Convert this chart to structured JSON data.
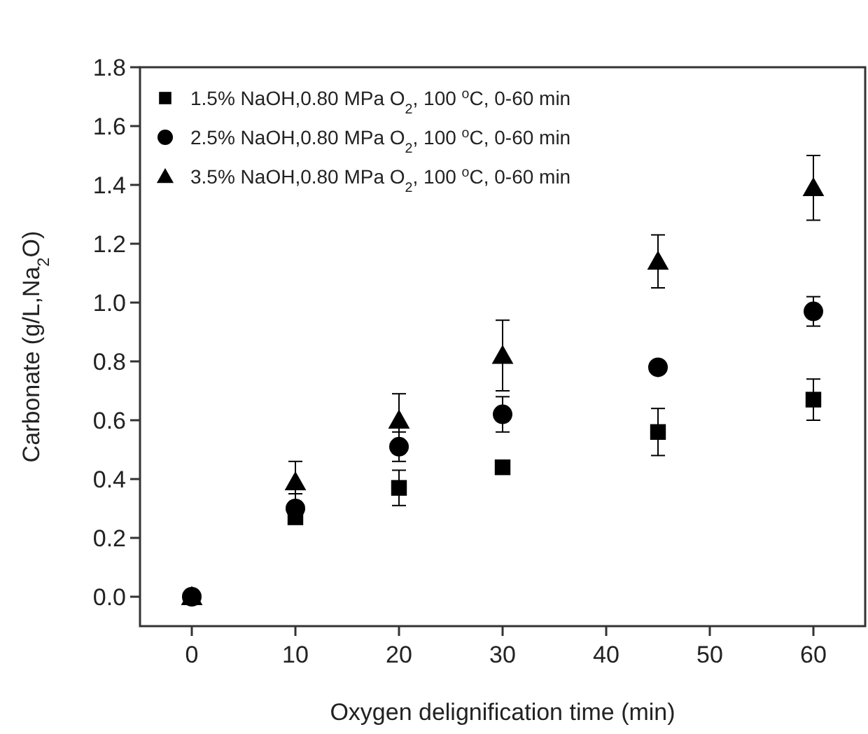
{
  "chart_data": {
    "type": "scatter",
    "xlabel": "Oxygen delignification time (min)",
    "ylabel": "Carbonate (g/L,Na$_{2}$O)",
    "x": [
      0,
      10,
      20,
      30,
      45,
      60
    ],
    "xlim": [
      -5,
      65
    ],
    "xticks": [
      0,
      10,
      20,
      30,
      40,
      50,
      60
    ],
    "ylim": [
      -0.1,
      1.8
    ],
    "yticks": [
      {
        "value": 0,
        "label": "0.0"
      },
      {
        "value": 0.2,
        "label": "0.2"
      },
      {
        "value": 0.4,
        "label": "0.4"
      },
      {
        "value": 0.6,
        "label": "0.6"
      },
      {
        "value": 0.8,
        "label": "0.8"
      },
      {
        "value": 1.0,
        "label": "1.0"
      },
      {
        "value": 1.2,
        "label": "1.2"
      },
      {
        "value": 1.4,
        "label": "1.4"
      },
      {
        "value": 1.6,
        "label": "1.6"
      },
      {
        "value": 1.8,
        "label": "1.8"
      }
    ],
    "grid": false,
    "legend": "top left",
    "series": [
      {
        "name": "1.5% NaOH,0.80 MPa O$_{2}$, 100 $^{o}$C, 0-60 min",
        "color": "#000000",
        "marker": "square",
        "values": [
          null,
          0.27,
          0.37,
          0.44,
          0.56,
          0.67
        ],
        "errors": [
          null,
          null,
          0.06,
          null,
          0.08,
          0.07
        ]
      },
      {
        "name": "2.5% NaOH,0.80 MPa O$_{2}$, 100 $^{o}$C, 0-60 min",
        "color": "#000000",
        "marker": "circle",
        "values": [
          0,
          0.3,
          0.51,
          0.62,
          0.78,
          0.97
        ],
        "errors": [
          null,
          0.05,
          0.05,
          0.06,
          null,
          0.05
        ]
      },
      {
        "name": "3.5% NaOH,0.80 MPa O$_{2}$, 100 $^{o}$C, 0-60 min",
        "color": "#000000",
        "marker": "triangle",
        "values": [
          0,
          0.39,
          0.6,
          0.82,
          1.14,
          1.39
        ],
        "errors": [
          null,
          0.07,
          0.09,
          0.12,
          0.09,
          0.11
        ]
      }
    ]
  }
}
